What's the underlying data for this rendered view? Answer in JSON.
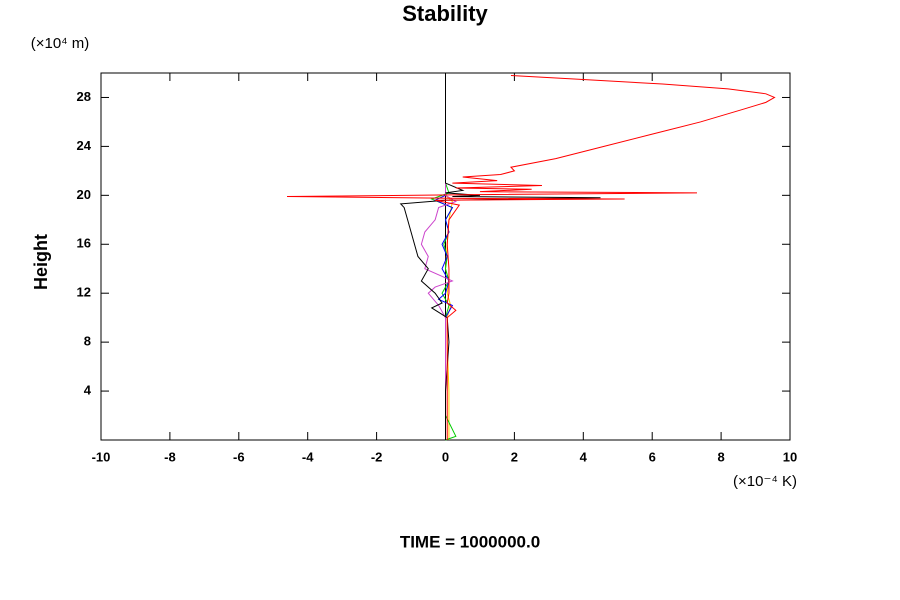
{
  "chart_data": {
    "type": "line",
    "title": "Stability",
    "y_unit_label": "(×10⁴ m)",
    "y_label": "Height",
    "x_unit_label": "(×10⁻⁴ K)",
    "footer": "TIME = 1000000.0",
    "xlim": [
      -10,
      10
    ],
    "xticks": [
      -10,
      -8,
      -6,
      -4,
      -2,
      0,
      2,
      4,
      6,
      8,
      10
    ],
    "ylim": [
      0,
      30
    ],
    "yticks": [
      4,
      8,
      12,
      16,
      20,
      24,
      28
    ],
    "series": [
      {
        "color": "#ffcc00",
        "y": [
          0,
          4,
          8,
          10,
          11,
          12,
          13,
          14,
          16,
          18,
          19.5,
          20,
          21
        ],
        "x": [
          0.1,
          0.1,
          0.05,
          0.05,
          0.15,
          0.05,
          0.1,
          0,
          0.05,
          0.1,
          0.2,
          0,
          0
        ]
      },
      {
        "color": "#00cc00",
        "y": [
          0,
          0.3,
          2,
          8,
          10,
          11,
          12,
          13,
          14,
          15,
          16,
          17,
          18,
          19,
          19.7,
          20.2,
          21
        ],
        "x": [
          0,
          0.3,
          0,
          0,
          0,
          0.1,
          -0.1,
          0.1,
          0,
          0.05,
          -0.05,
          0.1,
          0,
          0.2,
          -0.4,
          0.1,
          0
        ]
      },
      {
        "color": "#0000ff",
        "y": [
          0,
          8,
          10,
          11,
          11.5,
          12,
          13,
          14,
          15,
          16,
          17,
          18,
          19,
          19.6,
          20,
          21
        ],
        "x": [
          0,
          0,
          0,
          0.2,
          -0.2,
          0,
          0.1,
          -0.1,
          0.05,
          -0.1,
          0.1,
          0,
          0.2,
          -0.3,
          0,
          0
        ]
      },
      {
        "color": "#cc44cc",
        "y": [
          0,
          10,
          11,
          12,
          12.5,
          13,
          14,
          15,
          16,
          17,
          18,
          19,
          19.5,
          20,
          21
        ],
        "x": [
          0,
          0,
          -0.2,
          -0.5,
          -0.3,
          0.2,
          -0.6,
          -0.5,
          -0.7,
          -0.6,
          -0.3,
          -0.2,
          0.3,
          0,
          0
        ]
      },
      {
        "color": "#000000",
        "y": [
          0,
          4,
          8,
          10,
          10.8,
          11.2,
          12,
          13,
          14,
          15,
          16,
          17,
          18,
          19,
          19.3,
          19.6,
          19.8,
          19.9,
          20.0,
          20.2,
          20.4,
          21,
          24,
          28,
          29.8
        ],
        "x": [
          0,
          0,
          0.1,
          0.05,
          -0.4,
          -0.1,
          -0.3,
          -0.7,
          -0.5,
          -0.8,
          -0.9,
          -1.0,
          -1.1,
          -1.2,
          -1.3,
          0,
          4.5,
          0.2,
          1.0,
          0,
          0.5,
          0,
          0,
          0,
          0
        ]
      },
      {
        "color": "#ff0000",
        "y": [
          0,
          2,
          4,
          6,
          8,
          10,
          10.6,
          11.2,
          12,
          14,
          16,
          18,
          19.2,
          19.6,
          19.7,
          19.75,
          19.9,
          20.05,
          20.2,
          20.3,
          20.5,
          20.6,
          20.8,
          21.0,
          21.2,
          21.5,
          21.7,
          22.0,
          22.3,
          23,
          24,
          25,
          26,
          27,
          27.6,
          28,
          28.3,
          28.7,
          29.1,
          29.5,
          29.8
        ],
        "x": [
          0.05,
          0.05,
          0.05,
          0.05,
          0.05,
          0.05,
          0.3,
          0.05,
          0.1,
          0.1,
          0.05,
          0.1,
          0.4,
          -0.3,
          5.2,
          0.5,
          -4.6,
          0.5,
          7.3,
          1.0,
          2.5,
          0.3,
          2.8,
          0.2,
          1.5,
          0.5,
          1.6,
          2.0,
          1.9,
          3.2,
          4.6,
          6.0,
          7.4,
          8.6,
          9.3,
          9.55,
          9.3,
          8.2,
          6.3,
          3.8,
          1.9
        ]
      }
    ]
  }
}
